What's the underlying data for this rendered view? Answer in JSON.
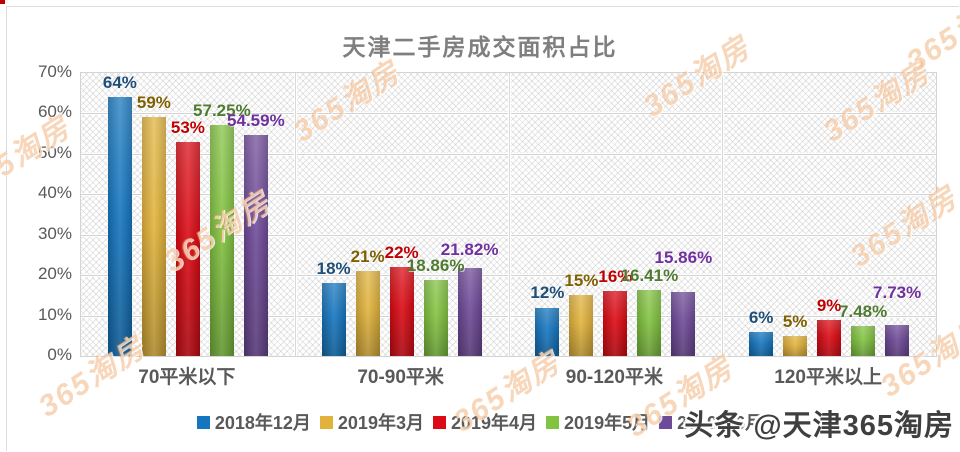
{
  "title": "天津二手房成交面积占比",
  "watermark": {
    "diagonal_text": "365淘房",
    "credit_text": "头条 @天津365淘房"
  },
  "chart_data": {
    "type": "bar",
    "title": "天津二手房成交面积占比",
    "categories": [
      "70平米以下",
      "70-90平米",
      "90-120平米",
      "120平米以上"
    ],
    "series": [
      {
        "name": "2018年12月",
        "color": "#1576C0",
        "label_color": "#1F4E79",
        "values": [
          64,
          18,
          12,
          6
        ],
        "labels": [
          "64%",
          "18%",
          "12%",
          "6%"
        ]
      },
      {
        "name": "2019年3月",
        "color": "#E2B33C",
        "label_color": "#7F6000",
        "values": [
          59,
          21,
          15,
          5
        ],
        "labels": [
          "59%",
          "21%",
          "15%",
          "5%"
        ]
      },
      {
        "name": "2019年4月",
        "color": "#DC0A14",
        "label_color": "#C00000",
        "values": [
          53,
          22,
          16,
          9
        ],
        "labels": [
          "53%",
          "22%",
          "16%",
          "9%"
        ]
      },
      {
        "name": "2019年5月",
        "color": "#82C341",
        "label_color": "#4E7B2F",
        "values": [
          57.25,
          18.86,
          16.41,
          7.48
        ],
        "labels": [
          "57.25%",
          "18.86%",
          "16.41%",
          "7.48%"
        ]
      },
      {
        "name": "2019年6月",
        "color": "#6F4A99",
        "label_color": "#7030A0",
        "values": [
          54.59,
          21.82,
          15.86,
          7.73
        ],
        "labels": [
          "54.59%",
          "21.82%",
          "15.86%",
          "7.73%"
        ]
      }
    ],
    "ylim": [
      0,
      70
    ],
    "y_ticks": [
      "0%",
      "10%",
      "20%",
      "30%",
      "40%",
      "50%",
      "60%",
      "70%"
    ],
    "grid": true,
    "legend_position": "bottom",
    "plot_background": "diagonal-hatch"
  }
}
